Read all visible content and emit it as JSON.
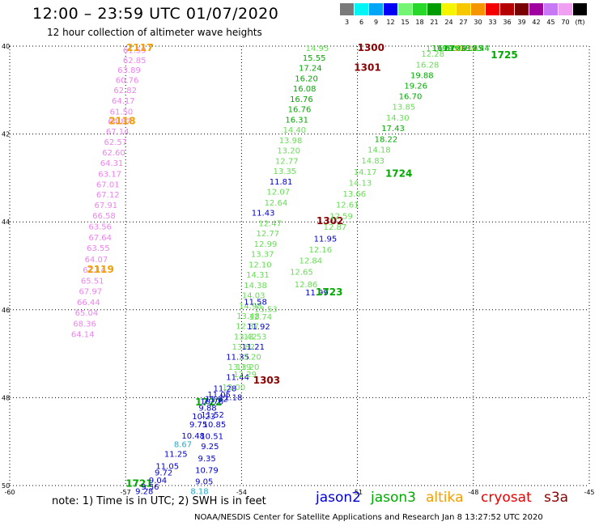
{
  "header": {
    "title": "12:00 – 23:59 UTC 01/07/2020",
    "subtitle": "12 hour collection of altimeter wave heights"
  },
  "color_scale": {
    "labels": [
      "3",
      "6",
      "9",
      "12",
      "15",
      "18",
      "21",
      "24",
      "27",
      "30",
      "33",
      "36",
      "39",
      "42",
      "45",
      "70",
      "(ft)"
    ],
    "colors": [
      "#7a7a7a",
      "#00f5f5",
      "#00a6f5",
      "#0000f5",
      "#74f574",
      "#28d828",
      "#009c00",
      "#f5f500",
      "#f5c800",
      "#f59600",
      "#f50000",
      "#b40000",
      "#780000",
      "#a000a0",
      "#c878f5",
      "#f0a0f0",
      "#000000"
    ]
  },
  "axes": {
    "y_ticks": [
      "40",
      "42",
      "44",
      "46",
      "48",
      "50"
    ],
    "x_ticks": [
      "-60",
      "-57",
      "-54",
      "-51",
      "-48",
      "-45"
    ]
  },
  "satellite_colors": {
    "pink": "#ee82ee",
    "lightgreen": "#66dd55",
    "green": "#00aa00",
    "blue": "#0000cc",
    "darkred": "#8b0000",
    "orange": "#f59d00",
    "teal": "#22aacc",
    "yellow": "#e0d030"
  },
  "chart_data": {
    "type": "scatter",
    "title": "12:00 – 23:59 UTC 01/07/2020",
    "xlim": [
      -60,
      -45
    ],
    "ylim": [
      50,
      40
    ],
    "points": [
      {
        "lon": -57.07,
        "lat": 40.08,
        "val": "61.59",
        "c": "pink"
      },
      {
        "lon": -57.07,
        "lat": 40.31,
        "val": "62.85",
        "c": "pink"
      },
      {
        "lon": -57.21,
        "lat": 40.53,
        "val": "63.89",
        "c": "pink"
      },
      {
        "lon": -57.26,
        "lat": 40.76,
        "val": "60.76",
        "c": "pink"
      },
      {
        "lon": -57.31,
        "lat": 40.99,
        "val": "62.82",
        "c": "pink"
      },
      {
        "lon": -57.36,
        "lat": 41.23,
        "val": "64.17",
        "c": "pink"
      },
      {
        "lon": -57.41,
        "lat": 41.48,
        "val": "61.50",
        "c": "pink"
      },
      {
        "lon": -57.46,
        "lat": 41.7,
        "val": "64.87",
        "c": "pink"
      },
      {
        "lon": -57.51,
        "lat": 41.93,
        "val": "67.14",
        "c": "pink"
      },
      {
        "lon": -57.56,
        "lat": 42.17,
        "val": "62.57",
        "c": "pink"
      },
      {
        "lon": -57.61,
        "lat": 42.41,
        "val": "62.60",
        "c": "pink"
      },
      {
        "lon": -57.66,
        "lat": 42.65,
        "val": "64.31",
        "c": "pink"
      },
      {
        "lon": -57.71,
        "lat": 42.9,
        "val": "63.17",
        "c": "pink"
      },
      {
        "lon": -57.76,
        "lat": 43.14,
        "val": "67.01",
        "c": "pink"
      },
      {
        "lon": -57.76,
        "lat": 43.37,
        "val": "67.12",
        "c": "pink"
      },
      {
        "lon": -57.81,
        "lat": 43.61,
        "val": "67.91",
        "c": "pink"
      },
      {
        "lon": -57.86,
        "lat": 43.85,
        "val": "66.58",
        "c": "pink"
      },
      {
        "lon": -57.96,
        "lat": 44.1,
        "val": "63.56",
        "c": "pink"
      },
      {
        "lon": -57.96,
        "lat": 44.35,
        "val": "67.64",
        "c": "pink"
      },
      {
        "lon": -58.01,
        "lat": 44.59,
        "val": "63.55",
        "c": "pink"
      },
      {
        "lon": -58.06,
        "lat": 44.84,
        "val": "64.07",
        "c": "pink"
      },
      {
        "lon": -58.11,
        "lat": 45.08,
        "val": "67.14",
        "c": "pink"
      },
      {
        "lon": -58.16,
        "lat": 45.33,
        "val": "65.51",
        "c": "pink"
      },
      {
        "lon": -58.21,
        "lat": 45.57,
        "val": "67.97",
        "c": "pink"
      },
      {
        "lon": -58.26,
        "lat": 45.82,
        "val": "66.44",
        "c": "pink"
      },
      {
        "lon": -58.31,
        "lat": 46.06,
        "val": "65.04",
        "c": "pink"
      },
      {
        "lon": -58.36,
        "lat": 46.31,
        "val": "68.36",
        "c": "pink"
      },
      {
        "lon": -58.41,
        "lat": 46.55,
        "val": "64.14",
        "c": "pink"
      },
      {
        "lon": -52.34,
        "lat": 40.03,
        "val": "14.95",
        "c": "lightgreen"
      },
      {
        "lon": -52.42,
        "lat": 40.26,
        "val": "15.55",
        "c": "green"
      },
      {
        "lon": -52.52,
        "lat": 40.49,
        "val": "17.24",
        "c": "green"
      },
      {
        "lon": -52.62,
        "lat": 40.73,
        "val": "16.20",
        "c": "green"
      },
      {
        "lon": -52.67,
        "lat": 40.96,
        "val": "16.08",
        "c": "green"
      },
      {
        "lon": -52.75,
        "lat": 41.2,
        "val": "16.76",
        "c": "green"
      },
      {
        "lon": -52.8,
        "lat": 41.43,
        "val": "16.76",
        "c": "green"
      },
      {
        "lon": -52.87,
        "lat": 41.67,
        "val": "16.31",
        "c": "green"
      },
      {
        "lon": -52.93,
        "lat": 41.9,
        "val": "14.40",
        "c": "lightgreen"
      },
      {
        "lon": -53.03,
        "lat": 42.14,
        "val": "13.98",
        "c": "lightgreen"
      },
      {
        "lon": -53.08,
        "lat": 42.37,
        "val": "13.20",
        "c": "lightgreen"
      },
      {
        "lon": -53.13,
        "lat": 42.61,
        "val": "12.77",
        "c": "lightgreen"
      },
      {
        "lon": -53.18,
        "lat": 42.84,
        "val": "13.35",
        "c": "lightgreen"
      },
      {
        "lon": -53.28,
        "lat": 43.08,
        "val": "11.81",
        "c": "blue"
      },
      {
        "lon": -53.35,
        "lat": 43.31,
        "val": "12.07",
        "c": "lightgreen"
      },
      {
        "lon": -53.41,
        "lat": 43.55,
        "val": "12.64",
        "c": "lightgreen"
      },
      {
        "lon": -53.74,
        "lat": 43.78,
        "val": "11.43",
        "c": "blue"
      },
      {
        "lon": -53.56,
        "lat": 44.02,
        "val": "12.47",
        "c": "lightgreen"
      },
      {
        "lon": -53.62,
        "lat": 44.25,
        "val": "12.77",
        "c": "lightgreen"
      },
      {
        "lon": -53.68,
        "lat": 44.49,
        "val": "12.99",
        "c": "lightgreen"
      },
      {
        "lon": -53.76,
        "lat": 44.72,
        "val": "13.37",
        "c": "lightgreen"
      },
      {
        "lon": -53.82,
        "lat": 44.96,
        "val": "12.10",
        "c": "lightgreen"
      },
      {
        "lon": -53.88,
        "lat": 45.19,
        "val": "14.31",
        "c": "lightgreen"
      },
      {
        "lon": -53.94,
        "lat": 45.43,
        "val": "14.38",
        "c": "lightgreen"
      },
      {
        "lon": -53.99,
        "lat": 45.66,
        "val": "14.03",
        "c": "lightgreen"
      },
      {
        "lon": -54.07,
        "lat": 45.9,
        "val": "14.98",
        "c": "lightgreen"
      },
      {
        "lon": -54.13,
        "lat": 46.13,
        "val": "13.48",
        "c": "lightgreen"
      },
      {
        "lon": -54.15,
        "lat": 46.36,
        "val": "12.87",
        "c": "lightgreen"
      },
      {
        "lon": -54.2,
        "lat": 46.6,
        "val": "13.42",
        "c": "lightgreen"
      },
      {
        "lon": -54.25,
        "lat": 46.83,
        "val": "13.82",
        "c": "lightgreen"
      },
      {
        "lon": -54.4,
        "lat": 47.06,
        "val": "11.35",
        "c": "blue"
      },
      {
        "lon": -54.35,
        "lat": 47.29,
        "val": "13.19",
        "c": "lightgreen"
      },
      {
        "lon": -54.4,
        "lat": 47.52,
        "val": "11.44",
        "c": "blue"
      },
      {
        "lon": -54.5,
        "lat": 47.75,
        "val": "13.00",
        "c": "lightgreen"
      },
      {
        "lon": -54.58,
        "lat": 47.98,
        "val": "11.18",
        "c": "blue"
      },
      {
        "lon": -51.0,
        "lat": 40.03,
        "val": "1300",
        "c": "darkred",
        "pass": true
      },
      {
        "lon": -51.09,
        "lat": 40.49,
        "val": "1301",
        "c": "darkred",
        "pass": true
      },
      {
        "lon": -52.06,
        "lat": 43.98,
        "val": "1302",
        "c": "darkred",
        "pass": true
      },
      {
        "lon": -53.7,
        "lat": 47.61,
        "val": "1303",
        "c": "darkred",
        "pass": true
      },
      {
        "lon": -53.94,
        "lat": 45.81,
        "val": "11.58",
        "c": "blue"
      },
      {
        "lon": -53.81,
        "lat": 46.15,
        "val": "12.74",
        "c": "lightgreen"
      },
      {
        "lon": -53.67,
        "lat": 45.98,
        "val": "13.53",
        "c": "lightgreen"
      },
      {
        "lon": -53.86,
        "lat": 46.37,
        "val": "11.92",
        "c": "blue"
      },
      {
        "lon": -53.95,
        "lat": 46.6,
        "val": "13.53",
        "c": "lightgreen"
      },
      {
        "lon": -54.0,
        "lat": 46.83,
        "val": "11.21",
        "c": "blue"
      },
      {
        "lon": -54.09,
        "lat": 47.06,
        "val": "13.20",
        "c": "lightgreen"
      },
      {
        "lon": -54.14,
        "lat": 47.29,
        "val": "13.20",
        "c": "lightgreen"
      },
      {
        "lon": -54.21,
        "lat": 47.46,
        "val": "12.29",
        "c": "lightgreen"
      },
      {
        "lon": -52.35,
        "lat": 45.6,
        "val": "11.99",
        "c": "blue"
      },
      {
        "lon": -52.63,
        "lat": 45.41,
        "val": "12.86",
        "c": "lightgreen"
      },
      {
        "lon": -52.75,
        "lat": 45.13,
        "val": "12.65",
        "c": "lightgreen"
      },
      {
        "lon": -52.51,
        "lat": 44.87,
        "val": "12.84",
        "c": "lightgreen"
      },
      {
        "lon": -52.26,
        "lat": 44.62,
        "val": "12.16",
        "c": "lightgreen"
      },
      {
        "lon": -52.13,
        "lat": 44.37,
        "val": "11.95",
        "c": "blue"
      },
      {
        "lon": -51.88,
        "lat": 44.11,
        "val": "12.87",
        "c": "lightgreen"
      },
      {
        "lon": -51.72,
        "lat": 43.86,
        "val": "12.59",
        "c": "lightgreen"
      },
      {
        "lon": -51.56,
        "lat": 43.6,
        "val": "12.61",
        "c": "lightgreen"
      },
      {
        "lon": -51.38,
        "lat": 43.35,
        "val": "13.66",
        "c": "lightgreen"
      },
      {
        "lon": -51.23,
        "lat": 43.1,
        "val": "14.13",
        "c": "lightgreen"
      },
      {
        "lon": -51.1,
        "lat": 42.85,
        "val": "14.17",
        "c": "lightgreen"
      },
      {
        "lon": -50.9,
        "lat": 42.6,
        "val": "14.83",
        "c": "lightgreen"
      },
      {
        "lon": -50.74,
        "lat": 42.35,
        "val": "14.18",
        "c": "lightgreen"
      },
      {
        "lon": -50.56,
        "lat": 42.11,
        "val": "18.22",
        "c": "green"
      },
      {
        "lon": -50.38,
        "lat": 41.86,
        "val": "17.43",
        "c": "green"
      },
      {
        "lon": -50.26,
        "lat": 41.62,
        "val": "14.30",
        "c": "lightgreen"
      },
      {
        "lon": -50.1,
        "lat": 41.37,
        "val": "13.85",
        "c": "lightgreen"
      },
      {
        "lon": -49.93,
        "lat": 41.13,
        "val": "16.70",
        "c": "green"
      },
      {
        "lon": -49.79,
        "lat": 40.89,
        "val": "19.26",
        "c": "green"
      },
      {
        "lon": -49.63,
        "lat": 40.65,
        "val": "19.88",
        "c": "green"
      },
      {
        "lon": -49.49,
        "lat": 40.41,
        "val": "16.28",
        "c": "lightgreen"
      },
      {
        "lon": -49.35,
        "lat": 40.17,
        "val": "12.28",
        "c": "lightgreen"
      },
      {
        "lon": -49.23,
        "lat": 39.93,
        "val": "13.68",
        "c": "lightgreen"
      },
      {
        "lon": -49.07,
        "lat": 39.69,
        "val": "16.61",
        "c": "green"
      },
      {
        "lon": -48.93,
        "lat": 39.46,
        "val": "19.78",
        "c": "green"
      },
      {
        "lon": -48.79,
        "lat": 39.22,
        "val": "19.04",
        "c": "green"
      },
      {
        "lon": -48.63,
        "lat": 38.98,
        "val": "19.93",
        "c": "green"
      },
      {
        "lon": -48.5,
        "lat": 38.74,
        "val": "21.37",
        "c": "yellow"
      },
      {
        "lon": -48.35,
        "lat": 38.5,
        "val": "18.85",
        "c": "green"
      },
      {
        "lon": -48.18,
        "lat": 38.26,
        "val": "19.44",
        "c": "green"
      },
      {
        "lon": -56.98,
        "lat": 40.03,
        "val": "2117",
        "c": "orange",
        "pass": true
      },
      {
        "lon": -57.44,
        "lat": 41.7,
        "val": "2118",
        "c": "orange",
        "pass": true
      },
      {
        "lon": -58.0,
        "lat": 45.08,
        "val": "2119",
        "c": "orange",
        "pass": true
      },
      {
        "lon": -47.55,
        "lat": 40.2,
        "val": "1725",
        "c": "green",
        "pass": true
      },
      {
        "lon": -50.28,
        "lat": 42.9,
        "val": "1724",
        "c": "green",
        "pass": true
      },
      {
        "lon": -52.08,
        "lat": 45.6,
        "val": "1723",
        "c": "green",
        "pass": true
      },
      {
        "lon": -55.2,
        "lat": 48.1,
        "val": "1722",
        "c": "green",
        "pass": true
      },
      {
        "lon": -57.0,
        "lat": 49.95,
        "val": "1721",
        "c": "green",
        "pass": true
      },
      {
        "lon": -54.95,
        "lat": 48.02,
        "val": "11.82",
        "c": "blue"
      },
      {
        "lon": -55.07,
        "lat": 48.08,
        "val": "10.76",
        "c": "blue"
      },
      {
        "lon": -55.11,
        "lat": 48.22,
        "val": "9.88",
        "c": "blue"
      },
      {
        "lon": -55.05,
        "lat": 48.38,
        "val": "11.52",
        "c": "blue"
      },
      {
        "lon": -55.28,
        "lat": 48.42,
        "val": "10.23",
        "c": "blue"
      },
      {
        "lon": -55.35,
        "lat": 48.6,
        "val": "9.75",
        "c": "blue"
      },
      {
        "lon": -55.0,
        "lat": 48.6,
        "val": "10.85",
        "c": "blue"
      },
      {
        "lon": -55.55,
        "lat": 48.86,
        "val": "10.48",
        "c": "blue"
      },
      {
        "lon": -55.07,
        "lat": 48.87,
        "val": "10.51",
        "c": "blue"
      },
      {
        "lon": -55.75,
        "lat": 49.05,
        "val": "8.67",
        "c": "teal"
      },
      {
        "lon": -55.05,
        "lat": 49.1,
        "val": "9.25",
        "c": "blue"
      },
      {
        "lon": -56.0,
        "lat": 49.27,
        "val": "11.25",
        "c": "blue"
      },
      {
        "lon": -55.13,
        "lat": 49.37,
        "val": "9.35",
        "c": "blue"
      },
      {
        "lon": -56.22,
        "lat": 49.55,
        "val": "11.05",
        "c": "blue"
      },
      {
        "lon": -56.25,
        "lat": 49.7,
        "val": "9.72",
        "c": "blue"
      },
      {
        "lon": -55.2,
        "lat": 49.64,
        "val": "10.79",
        "c": "blue"
      },
      {
        "lon": -56.4,
        "lat": 49.87,
        "val": "9.04",
        "c": "blue"
      },
      {
        "lon": -55.2,
        "lat": 49.9,
        "val": "9.05",
        "c": "blue"
      },
      {
        "lon": -56.6,
        "lat": 50.02,
        "val": "9.56",
        "c": "blue"
      },
      {
        "lon": -56.75,
        "lat": 50.12,
        "val": "9.28",
        "c": "blue"
      },
      {
        "lon": -55.32,
        "lat": 50.12,
        "val": "8.18",
        "c": "teal"
      },
      {
        "lon": -54.73,
        "lat": 47.78,
        "val": "11.28",
        "c": "blue"
      },
      {
        "lon": -54.88,
        "lat": 47.92,
        "val": "11.05",
        "c": "blue"
      }
    ]
  },
  "footer": {
    "note": "note:  1) Time is in UTC;  2) SWH is in feet",
    "legend": [
      {
        "name": "jason2",
        "color": "#0000dd"
      },
      {
        "name": "jason3",
        "color": "#00aa00"
      },
      {
        "name": "altika",
        "color": "#f59d00"
      },
      {
        "name": "cryosat",
        "color": "#ee0000"
      },
      {
        "name": "s3a",
        "color": "#8b0000"
      }
    ],
    "credit": "NOAA/NESDIS Center for Satellite Applications and Research    Jan  8 13:27:52 UTC 2020"
  }
}
